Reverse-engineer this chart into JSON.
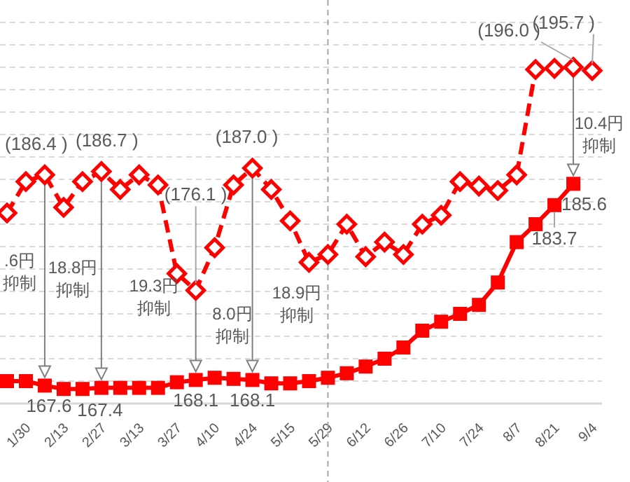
{
  "chart_data": {
    "type": "line",
    "categories": [
      null,
      "1/30",
      null,
      "2/13",
      null,
      "2/27",
      null,
      "3/13",
      null,
      "3/27",
      null,
      "4/10",
      null,
      "4/24",
      null,
      "5/15",
      null,
      "5/29",
      null,
      "6/12",
      null,
      "6/26",
      null,
      "7/10",
      null,
      "7/24",
      null,
      "8/7",
      null,
      "8/21",
      null,
      "9/4"
    ],
    "series": [
      {
        "color": "#ff0000",
        "marker": "diamond",
        "line_style": "dashed",
        "values": [
          183.0,
          185.8,
          186.4,
          183.5,
          185.8,
          186.7,
          185.1,
          186.4,
          185.5,
          177.6,
          176.1,
          179.9,
          185.5,
          187.0,
          185.1,
          182.3,
          178.6,
          179.3,
          182.0,
          179.1,
          180.4,
          179.3,
          182.0,
          182.8,
          185.8,
          185.4,
          185.0,
          186.4,
          195.8,
          195.9,
          196.0,
          195.7
        ],
        "value_labels": [
          null,
          null,
          "(186.4 )",
          null,
          null,
          "(186.7 )",
          null,
          null,
          null,
          null,
          "(176.1 )",
          null,
          null,
          "(187.0 )",
          null,
          null,
          null,
          null,
          null,
          null,
          null,
          null,
          null,
          null,
          null,
          null,
          null,
          null,
          null,
          null,
          "(196.0 )",
          "(195.7 )"
        ]
      },
      {
        "color": "#ff0000",
        "marker": "square",
        "line_style": "solid",
        "values": [
          168.0,
          168.0,
          167.6,
          167.3,
          167.3,
          167.4,
          167.4,
          167.4,
          167.4,
          167.9,
          168.1,
          168.3,
          168.2,
          168.1,
          167.8,
          167.8,
          168.0,
          168.3,
          168.7,
          169.3,
          170.0,
          171.0,
          172.5,
          173.3,
          174.0,
          174.8,
          176.8,
          180.4,
          182.0,
          183.7,
          185.6,
          null
        ],
        "value_labels": [
          null,
          null,
          "167.6",
          null,
          null,
          "167.4",
          null,
          null,
          null,
          null,
          "168.1",
          null,
          null,
          "168.1",
          null,
          null,
          null,
          null,
          null,
          null,
          null,
          null,
          null,
          null,
          null,
          null,
          null,
          null,
          null,
          "183.7",
          "185.6",
          null
        ]
      }
    ],
    "ylim": [
      166,
      202
    ],
    "yticks": [
      {
        "value": 168,
        "label": null
      },
      {
        "value": 170,
        "label": null
      },
      {
        "value": 172,
        "label": null
      },
      {
        "value": 174,
        "label": null
      },
      {
        "value": 176,
        "label": null
      },
      {
        "value": 178,
        "label": null
      },
      {
        "value": 180,
        "label": null
      },
      {
        "value": 182,
        "label": null
      },
      {
        "value": 184,
        "label": null
      },
      {
        "value": 186,
        "label": null
      },
      {
        "value": 188,
        "label": null
      },
      {
        "value": 190,
        "label": null
      },
      {
        "value": 192,
        "label": null
      },
      {
        "value": 194,
        "label": null
      },
      {
        "value": 196,
        "label": null
      },
      {
        "value": 198,
        "label": null
      },
      {
        "value": 200,
        "label": null
      }
    ],
    "grid": "y",
    "tick_labels": "x",
    "ref_lines": [
      {
        "axis": "x",
        "value": "5/29",
        "color": "#a6a6a6",
        "line_style": "dashed"
      }
    ],
    "annotations": [
      ".6円抑制",
      "18.8円抑制",
      "19.3円抑制",
      "8.0円抑制",
      "18.9円抑制",
      "10.4円抑制"
    ]
  }
}
